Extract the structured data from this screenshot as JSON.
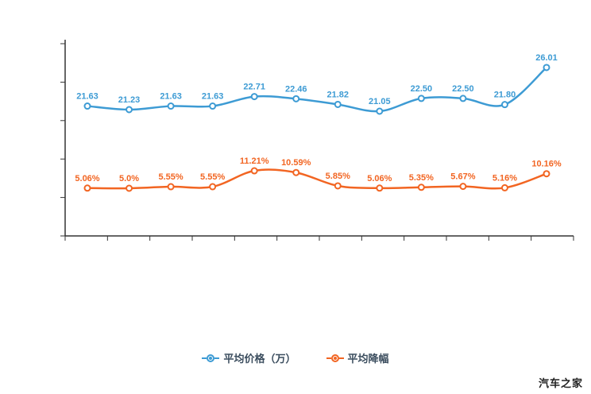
{
  "chart_data": {
    "type": "line",
    "title": "",
    "xlabel": "",
    "ylabel": "",
    "x_tick_labels": [],
    "y_tick_labels": [],
    "grid": false,
    "legend_position": "bottom",
    "point_count": 12,
    "series": [
      {
        "name": "平均价格（万）",
        "color": "#3d9bd4",
        "values": [
          21.63,
          21.23,
          21.63,
          21.63,
          22.71,
          22.46,
          21.82,
          21.05,
          22.5,
          22.5,
          21.8,
          26.01
        ],
        "labels": [
          "21.63",
          "21.23",
          "21.63",
          "21.63",
          "22.71",
          "22.46",
          "21.82",
          "21.05",
          "22.50",
          "22.50",
          "21.80",
          "26.01"
        ]
      },
      {
        "name": "平均降幅",
        "color": "#f26522",
        "values": [
          5.06,
          5.0,
          5.55,
          5.55,
          11.21,
          10.59,
          5.85,
          5.06,
          5.35,
          5.67,
          5.16,
          10.16
        ],
        "labels": [
          "5.06%",
          "5.0%",
          "5.55%",
          "5.55%",
          "11.21%",
          "10.59%",
          "5.85%",
          "5.06%",
          "5.35%",
          "5.67%",
          "5.16%",
          "10.16%"
        ]
      }
    ]
  },
  "legend": {
    "items": [
      {
        "label": "平均价格（万）",
        "color": "#3d9bd4"
      },
      {
        "label": "平均降幅",
        "color": "#f26522"
      }
    ]
  },
  "colors": {
    "axis": "#333333",
    "price_series": "#3d9bd4",
    "discount_series": "#f26522"
  },
  "watermark": {
    "text": "汽车之家"
  }
}
